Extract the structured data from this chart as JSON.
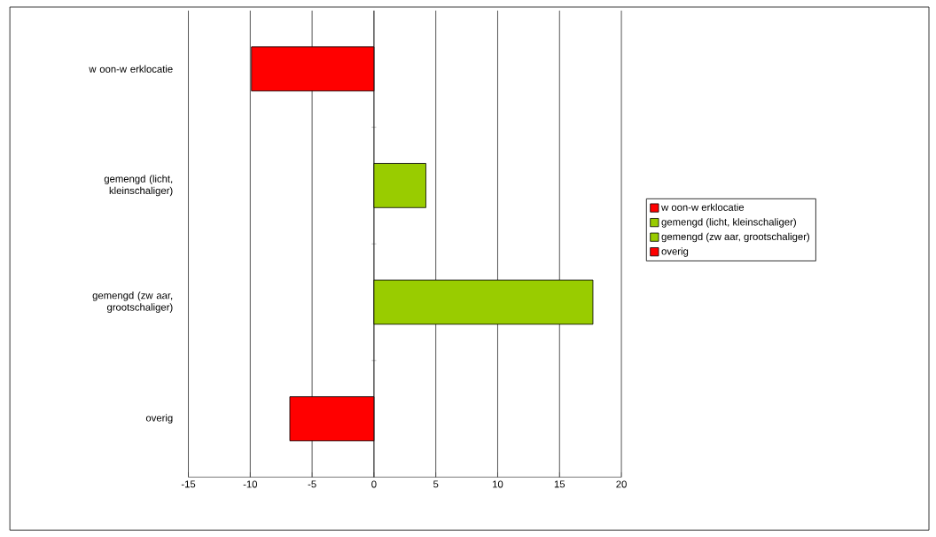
{
  "chart_data": {
    "type": "bar",
    "orientation": "horizontal",
    "categories": [
      "w oon-w erklocatie",
      "gemengd (licht, kleinschaliger)",
      "gemengd (zw aar, grootschaliger)",
      "overig"
    ],
    "series": [
      {
        "name": "w oon-w erklocatie",
        "color": "#ff0000",
        "values": [
          -9.9,
          null,
          null,
          null
        ]
      },
      {
        "name": "gemengd (licht, kleinschaliger)",
        "color": "#99cc00",
        "values": [
          null,
          4.2,
          null,
          null
        ]
      },
      {
        "name": "gemengd (zw aar, grootschaliger)",
        "color": "#99cc00",
        "values": [
          null,
          null,
          17.7,
          null
        ]
      },
      {
        "name": "overig",
        "color": "#ff0000",
        "values": [
          null,
          null,
          null,
          -6.8
        ]
      }
    ],
    "xlim": [
      -15,
      20
    ],
    "xticks": [
      -15,
      -10,
      -5,
      0,
      5,
      10,
      15,
      20
    ],
    "grid": "x",
    "legend": "right"
  }
}
